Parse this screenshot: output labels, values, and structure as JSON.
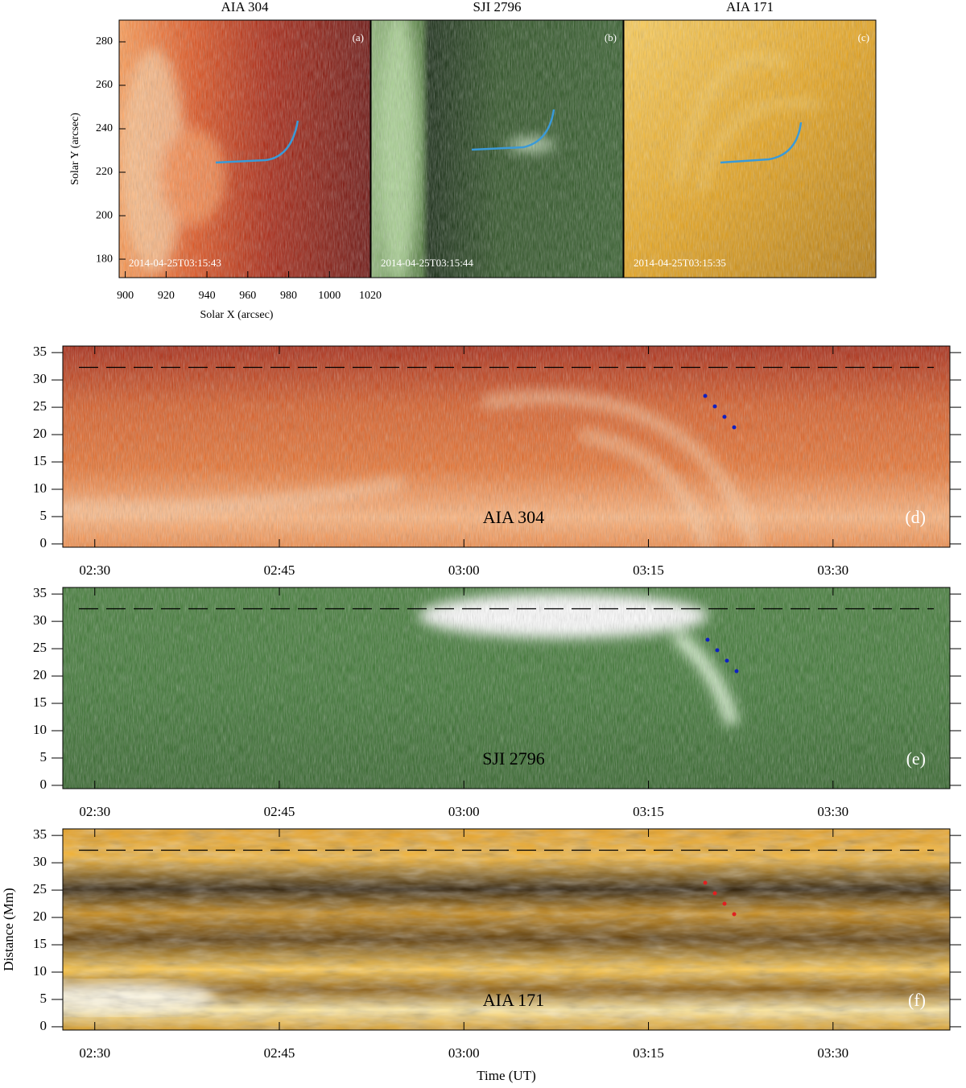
{
  "figure": {
    "top": {
      "xlabel": "Solar X (arcsec)",
      "ylabel": "Solar Y (arcsec)",
      "xlim": [
        897,
        1020
      ],
      "ylim": [
        171.5,
        290
      ],
      "xticks": [
        900,
        920,
        940,
        960,
        980,
        1000,
        1020
      ],
      "yticks": [
        180,
        200,
        220,
        240,
        260,
        280
      ],
      "panels": [
        {
          "title": "AIA 304",
          "tag": "(a)",
          "timestamp": "2014-04-25T03:15:43"
        },
        {
          "title": "SJI 2796",
          "tag": "(b)",
          "timestamp": "2014-04-25T03:15:44"
        },
        {
          "title": "AIA 171",
          "tag": "(c)",
          "timestamp": "2014-04-25T03:15:35"
        }
      ]
    },
    "bottom": {
      "xlabel": "Time (UT)",
      "ylabel": "Distance (Mm)",
      "xlim": [
        27.4,
        99.5
      ],
      "ylim": [
        -0.6,
        36.2
      ],
      "xticks": [
        {
          "value": 30,
          "label": "02:30"
        },
        {
          "value": 45,
          "label": "02:45"
        },
        {
          "value": 60,
          "label": "03:00"
        },
        {
          "value": 75,
          "label": "03:15"
        },
        {
          "value": 90,
          "label": "03:30"
        }
      ],
      "yticks": [
        0,
        5,
        10,
        15,
        20,
        25,
        30,
        35
      ],
      "dashed_level": 32.3,
      "panels": [
        {
          "label": "AIA 304",
          "tag": "(d)"
        },
        {
          "label": "SJI 2796",
          "tag": "(e)"
        },
        {
          "label": "AIA 171",
          "tag": "(f)"
        }
      ]
    }
  }
}
